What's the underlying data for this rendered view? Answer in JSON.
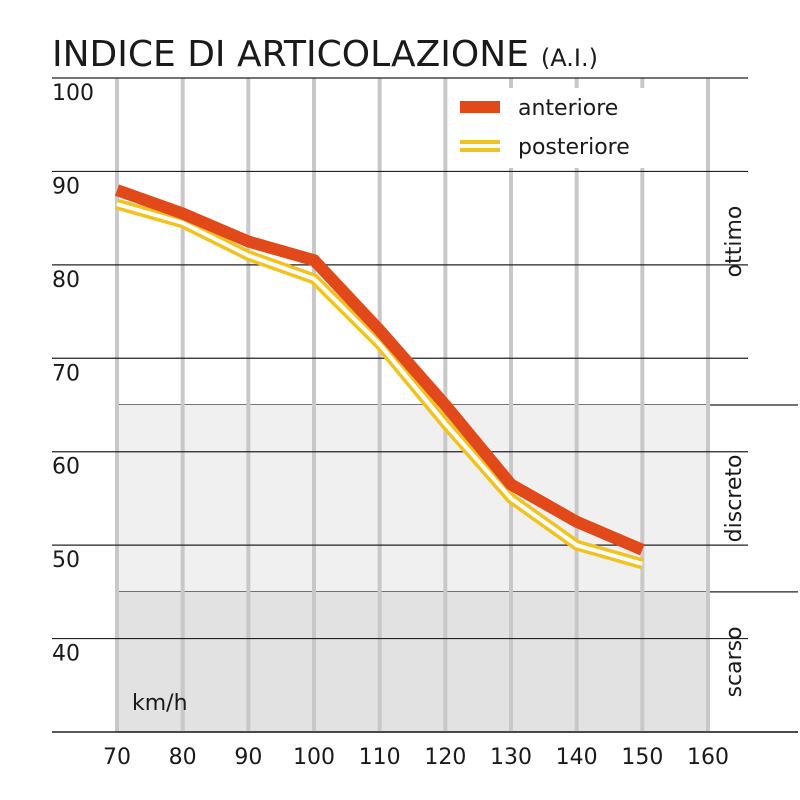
{
  "chart_data": {
    "type": "line",
    "title": "INDICE DI ARTICOLAZIONE",
    "subtitle": "(A.I.)",
    "x_annotation": "km/h",
    "x": [
      70,
      80,
      90,
      100,
      110,
      120,
      130,
      140,
      150
    ],
    "series": [
      {
        "name": "anteriore",
        "color": "#e2491a",
        "values": [
          88,
          85.5,
          82.5,
          80.5,
          73,
          65,
          56.5,
          52.5,
          49.5
        ]
      },
      {
        "name": "posteriore",
        "color": "#f2c31f",
        "values": [
          86.5,
          84.5,
          81,
          78.5,
          71.5,
          63,
          55,
          50,
          48
        ]
      }
    ],
    "xlim": [
      70,
      160
    ],
    "xticks": [
      70,
      80,
      90,
      100,
      110,
      120,
      130,
      140,
      150,
      160
    ],
    "ylim": [
      30,
      100
    ],
    "yticks": [
      40,
      50,
      60,
      70,
      80,
      90,
      100
    ],
    "bands": [
      {
        "label": "ottimo",
        "from": 65,
        "to": 100,
        "color": "#ffffff"
      },
      {
        "label": "discreto",
        "from": 45,
        "to": 65,
        "color": "#f0f0f0"
      },
      {
        "label": "scarso",
        "from": 30,
        "to": 45,
        "color": "#e2e2e2"
      }
    ],
    "grid": true,
    "legend": "top-right"
  }
}
